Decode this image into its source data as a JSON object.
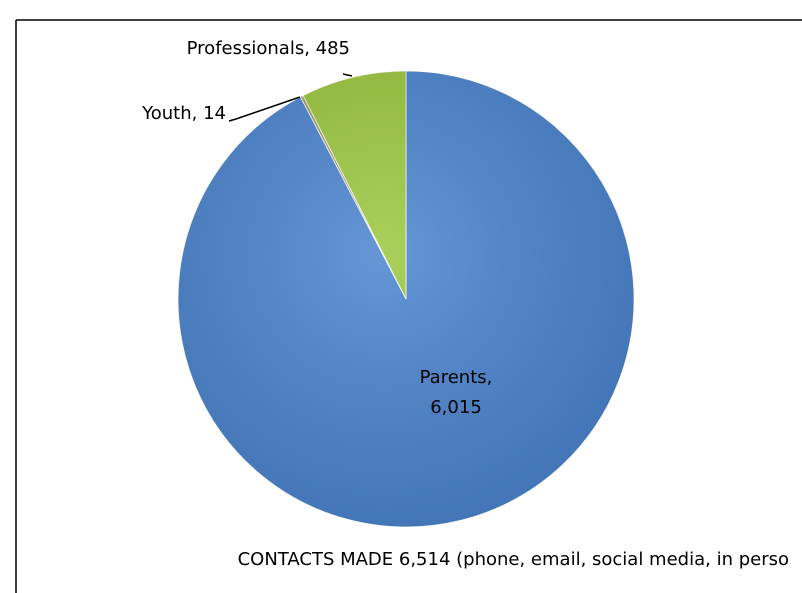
{
  "chart_data": {
    "type": "pie",
    "values": [
      6015,
      14,
      485
    ],
    "value_labels": [
      "Parents, 6,015",
      "Youth, 14",
      "Professionals, 485"
    ],
    "colors": [
      "#4a84cf",
      "#a3a36a",
      "#9cc73f"
    ],
    "caption": "CONTACTS MADE 6,514 (phone, email, social media, in perso"
  }
}
